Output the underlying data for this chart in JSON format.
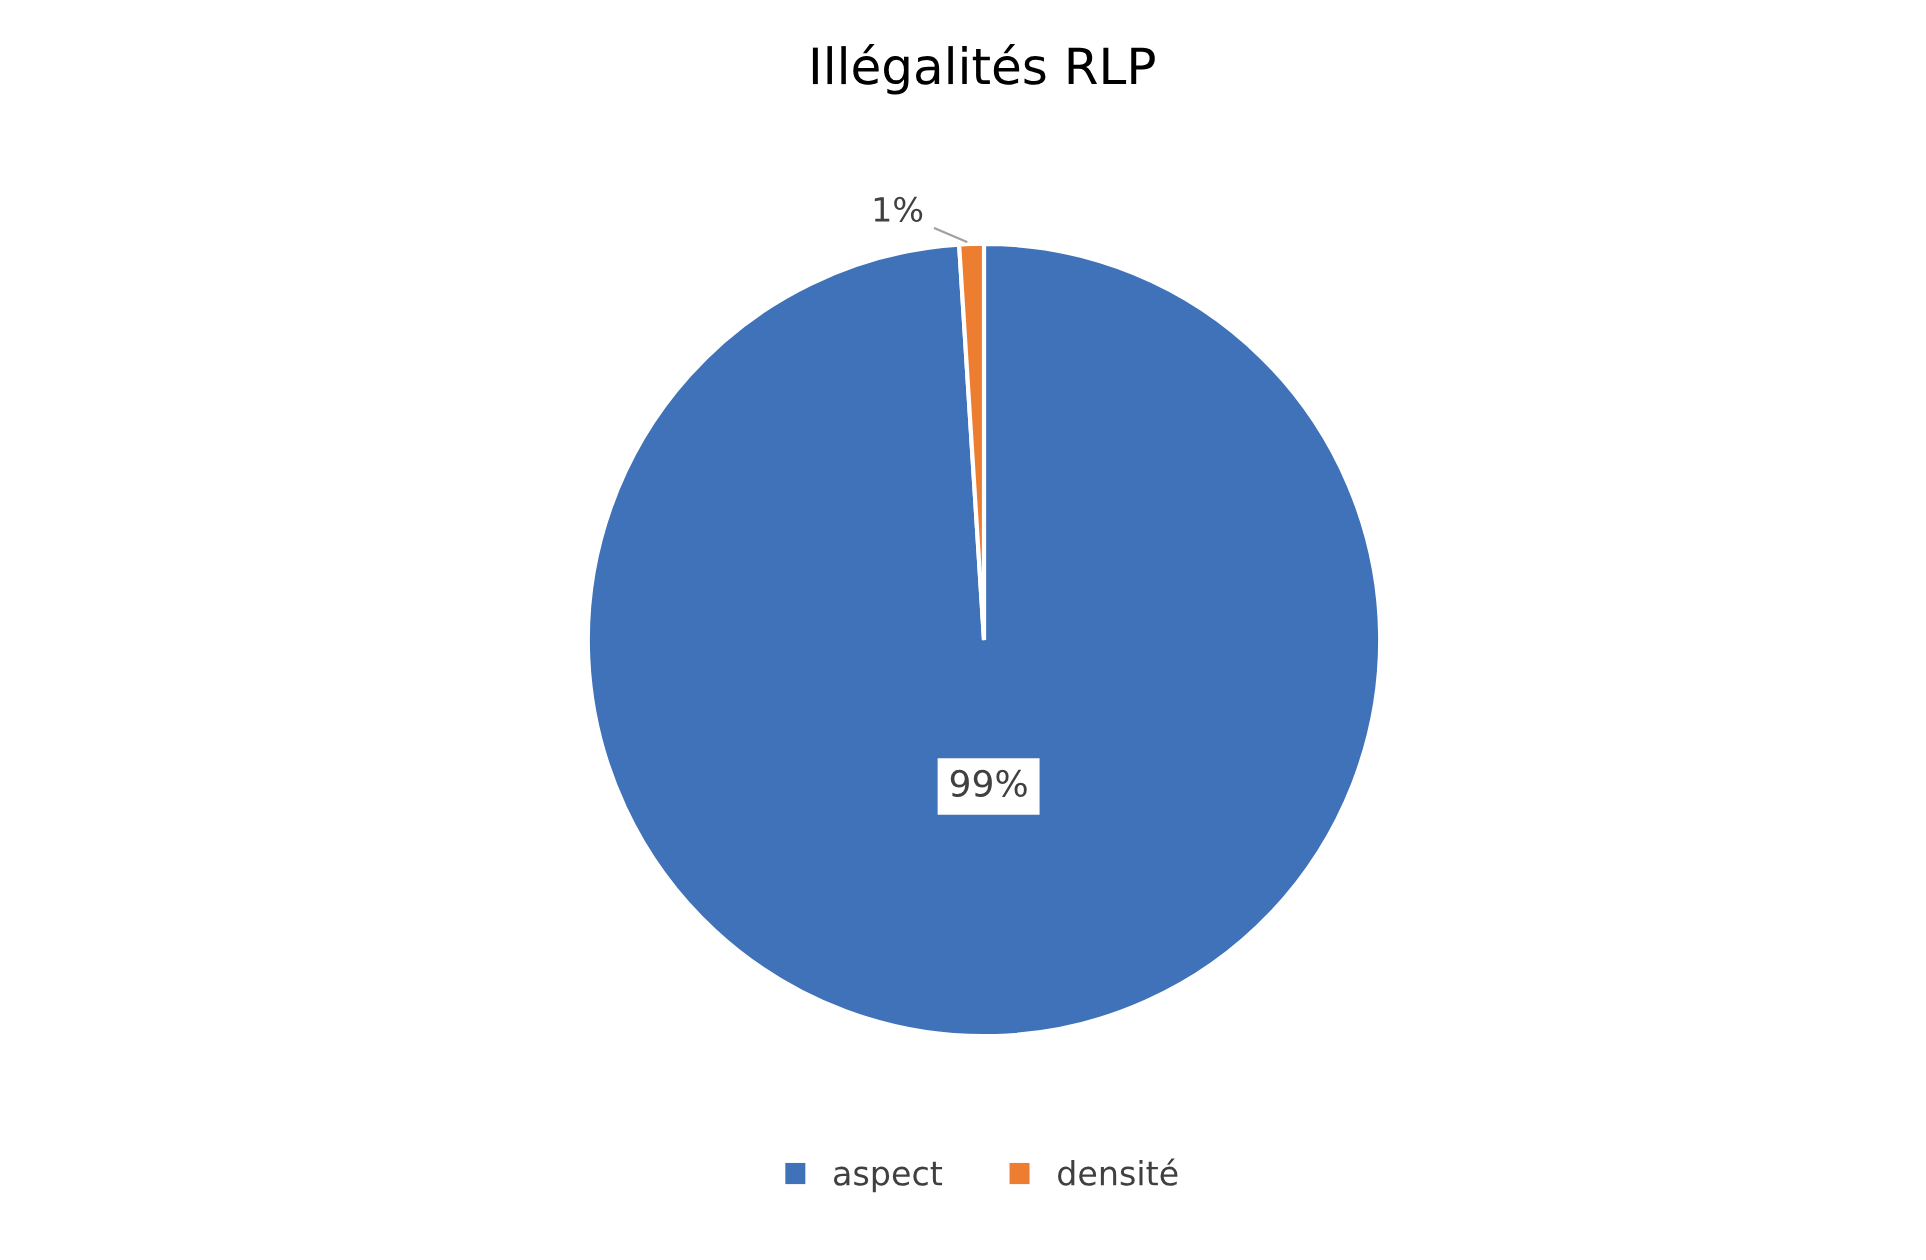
{
  "chart_data": {
    "type": "pie",
    "title": "Illégalités RLP",
    "categories": [
      "aspect",
      "densité"
    ],
    "values": [
      99,
      1
    ],
    "colors": [
      "#3f72b8",
      "#ed7d31"
    ],
    "value_labels": [
      "99%",
      "1%"
    ],
    "legend": "bottom"
  }
}
